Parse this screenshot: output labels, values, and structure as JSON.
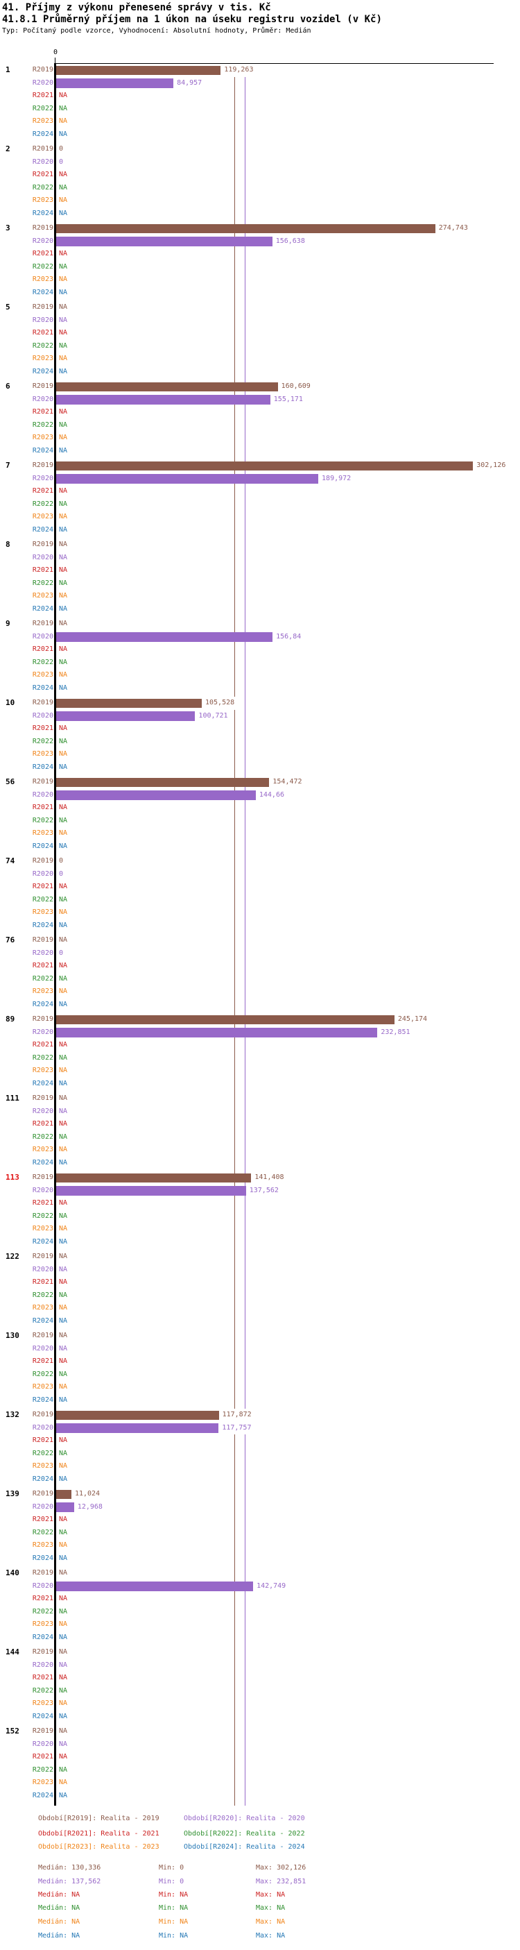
{
  "header": {
    "title": "41. Příjmy z výkonu přenesené správy v tis. Kč",
    "subtitle": "41.8.1 Průměrný příjem na 1 úkon na úseku registru vozidel (v Kč)",
    "meta": "Typ: Počítaný podle vzorce, Vyhodnocení: Absolutní hodnoty, Průměr: Medián"
  },
  "axis": {
    "zero_label": "0"
  },
  "series_colors": {
    "R2019": "#8b5a4a",
    "R2020": "#9768c8",
    "R2021": "#cc2222",
    "R2022": "#2f8f2f",
    "R2023": "#f08419",
    "R2024": "#2578b5",
    "highlight": "#e01111"
  },
  "chart_data": {
    "type": "bar",
    "orientation": "horizontal",
    "unit": "Kč",
    "decimal_comma": true,
    "title": "41.8.1 Průměrný příjem na 1 úkon na úseku registru vozidel (v Kč)",
    "x_range": [
      0,
      313
    ],
    "series": [
      "R2019",
      "R2020",
      "R2021",
      "R2022",
      "R2023",
      "R2024"
    ],
    "categories": [
      "1",
      "2",
      "3",
      "5",
      "6",
      "7",
      "8",
      "9",
      "10",
      "56",
      "74",
      "76",
      "89",
      "111",
      "113",
      "122",
      "130",
      "132",
      "139",
      "140",
      "144",
      "152"
    ],
    "highlighted_categories": [
      "113"
    ],
    "rows": [
      {
        "category": "1",
        "values": [
          "119,263",
          "84,957",
          "NA",
          "NA",
          "NA",
          "NA"
        ]
      },
      {
        "category": "2",
        "values": [
          "0",
          "0",
          "NA",
          "NA",
          "NA",
          "NA"
        ]
      },
      {
        "category": "3",
        "values": [
          "274,743",
          "156,638",
          "NA",
          "NA",
          "NA",
          "NA"
        ]
      },
      {
        "category": "5",
        "values": [
          "NA",
          "NA",
          "NA",
          "NA",
          "NA",
          "NA"
        ]
      },
      {
        "category": "6",
        "values": [
          "160,609",
          "155,171",
          "NA",
          "NA",
          "NA",
          "NA"
        ]
      },
      {
        "category": "7",
        "values": [
          "302,126",
          "189,972",
          "NA",
          "NA",
          "NA",
          "NA"
        ]
      },
      {
        "category": "8",
        "values": [
          "NA",
          "NA",
          "NA",
          "NA",
          "NA",
          "NA"
        ]
      },
      {
        "category": "9",
        "values": [
          "NA",
          "156,84",
          "NA",
          "NA",
          "NA",
          "NA"
        ]
      },
      {
        "category": "10",
        "values": [
          "105,528",
          "100,721",
          "NA",
          "NA",
          "NA",
          "NA"
        ]
      },
      {
        "category": "56",
        "values": [
          "154,472",
          "144,66",
          "NA",
          "NA",
          "NA",
          "NA"
        ]
      },
      {
        "category": "74",
        "values": [
          "0",
          "0",
          "NA",
          "NA",
          "NA",
          "NA"
        ]
      },
      {
        "category": "76",
        "values": [
          "NA",
          "0",
          "NA",
          "NA",
          "NA",
          "NA"
        ]
      },
      {
        "category": "89",
        "values": [
          "245,174",
          "232,851",
          "NA",
          "NA",
          "NA",
          "NA"
        ]
      },
      {
        "category": "111",
        "values": [
          "NA",
          "NA",
          "NA",
          "NA",
          "NA",
          "NA"
        ]
      },
      {
        "category": "113",
        "values": [
          "141,408",
          "137,562",
          "NA",
          "NA",
          "NA",
          "NA"
        ]
      },
      {
        "category": "122",
        "values": [
          "NA",
          "NA",
          "NA",
          "NA",
          "NA",
          "NA"
        ]
      },
      {
        "category": "130",
        "values": [
          "NA",
          "NA",
          "NA",
          "NA",
          "NA",
          "NA"
        ]
      },
      {
        "category": "132",
        "values": [
          "117,872",
          "117,757",
          "NA",
          "NA",
          "NA",
          "NA"
        ]
      },
      {
        "category": "139",
        "values": [
          "11,024",
          "12,968",
          "NA",
          "NA",
          "NA",
          "NA"
        ]
      },
      {
        "category": "140",
        "values": [
          "NA",
          "142,749",
          "NA",
          "NA",
          "NA",
          "NA"
        ]
      },
      {
        "category": "144",
        "values": [
          "NA",
          "NA",
          "NA",
          "NA",
          "NA",
          "NA"
        ]
      },
      {
        "category": "152",
        "values": [
          "NA",
          "NA",
          "NA",
          "NA",
          "NA",
          "NA"
        ]
      }
    ],
    "medians": {
      "R2019": 130.336,
      "R2020": 137.562
    },
    "min": {
      "R2019": 0,
      "R2020": 0
    },
    "max": {
      "R2019": 302.126,
      "R2020": 232.851
    }
  },
  "legend": {
    "items": [
      {
        "series": "R2019",
        "label": "Období[R2019]: Realita - 2019"
      },
      {
        "series": "R2020",
        "label": "Období[R2020]: Realita - 2020"
      },
      {
        "series": "R2021",
        "label": "Období[R2021]: Realita - 2021"
      },
      {
        "series": "R2022",
        "label": "Období[R2022]: Realita - 2022"
      },
      {
        "series": "R2023",
        "label": "Období[R2023]: Realita - 2023"
      },
      {
        "series": "R2024",
        "label": "Období[R2024]: Realita - 2024"
      }
    ]
  },
  "stats": {
    "rows": [
      {
        "series": "R2019",
        "median": "Medián: 130,336",
        "min": "Min: 0",
        "max": "Max: 302,126"
      },
      {
        "series": "R2020",
        "median": "Medián: 137,562",
        "min": "Min: 0",
        "max": "Max: 232,851"
      },
      {
        "series": "R2021",
        "median": "Medián: NA",
        "min": "Min: NA",
        "max": "Max: NA"
      },
      {
        "series": "R2022",
        "median": "Medián: NA",
        "min": "Min: NA",
        "max": "Max: NA"
      },
      {
        "series": "R2023",
        "median": "Medián: NA",
        "min": "Min: NA",
        "max": "Max: NA"
      },
      {
        "series": "R2024",
        "median": "Medián: NA",
        "min": "Min: NA",
        "max": "Max: NA"
      }
    ]
  }
}
